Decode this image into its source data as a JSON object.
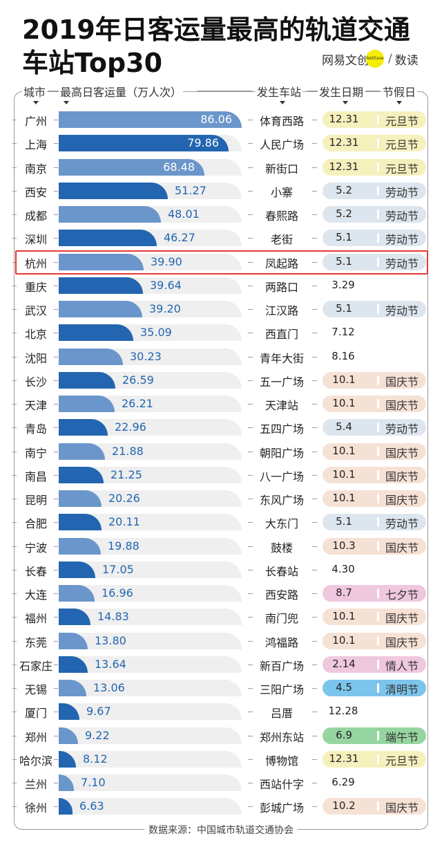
{
  "title": {
    "line1": "2019年日客运量最高的轨道交通",
    "line2": "车站Top30"
  },
  "logo": {
    "left": "网易文创",
    "mark": "NetEase",
    "sep": "/",
    "right": "数读"
  },
  "headers": {
    "city": "城市",
    "value": "最高日客运量（万人次）",
    "station": "发生车站",
    "date": "发生日期",
    "holiday": "节假日"
  },
  "source": "数据来源：中国城市轨道交通协会",
  "colors": {
    "bar_light": "#6b96cb",
    "bar_dark": "#2365b0",
    "track": "#efefef",
    "元旦节": "#f6f0bd",
    "劳动节": "#dde6ee",
    "国庆节": "#f6e1d5",
    "七夕节": "#efc8de",
    "情人节": "#efc8de",
    "清明节": "#7cc4ec",
    "端午节": "#96d5a0",
    "highlight": "#e53935"
  },
  "chart_data": {
    "type": "bar",
    "orientation": "horizontal",
    "title": "2019年日客运量最高的轨道交通车站Top30",
    "xlabel": "最高日客运量（万人次）",
    "xlim": [
      0,
      86.06
    ],
    "highlight": "杭州",
    "rows": [
      {
        "city": "广州",
        "value": "86.06",
        "station": "体育西路",
        "date": "12.31",
        "holiday": "元旦节"
      },
      {
        "city": "上海",
        "value": "79.86",
        "station": "人民广场",
        "date": "12.31",
        "holiday": "元旦节"
      },
      {
        "city": "南京",
        "value": "68.48",
        "station": "新街口",
        "date": "12.31",
        "holiday": "元旦节"
      },
      {
        "city": "西安",
        "value": "51.27",
        "station": "小寨",
        "date": "5.2",
        "holiday": "劳动节"
      },
      {
        "city": "成都",
        "value": "48.01",
        "station": "春熙路",
        "date": "5.2",
        "holiday": "劳动节"
      },
      {
        "city": "深圳",
        "value": "46.27",
        "station": "老街",
        "date": "5.1",
        "holiday": "劳动节"
      },
      {
        "city": "杭州",
        "value": "39.90",
        "station": "凤起路",
        "date": "5.1",
        "holiday": "劳动节"
      },
      {
        "city": "重庆",
        "value": "39.64",
        "station": "两路口",
        "date": "3.29",
        "holiday": ""
      },
      {
        "city": "武汉",
        "value": "39.20",
        "station": "江汉路",
        "date": "5.1",
        "holiday": "劳动节"
      },
      {
        "city": "北京",
        "value": "35.09",
        "station": "西直门",
        "date": "7.12",
        "holiday": ""
      },
      {
        "city": "沈阳",
        "value": "30.23",
        "station": "青年大街",
        "date": "8.16",
        "holiday": ""
      },
      {
        "city": "长沙",
        "value": "26.59",
        "station": "五一广场",
        "date": "10.1",
        "holiday": "国庆节"
      },
      {
        "city": "天津",
        "value": "26.21",
        "station": "天津站",
        "date": "10.1",
        "holiday": "国庆节"
      },
      {
        "city": "青岛",
        "value": "22.96",
        "station": "五四广场",
        "date": "5.4",
        "holiday": "劳动节"
      },
      {
        "city": "南宁",
        "value": "21.88",
        "station": "朝阳广场",
        "date": "10.1",
        "holiday": "国庆节"
      },
      {
        "city": "南昌",
        "value": "21.25",
        "station": "八一广场",
        "date": "10.1",
        "holiday": "国庆节"
      },
      {
        "city": "昆明",
        "value": "20.26",
        "station": "东风广场",
        "date": "10.1",
        "holiday": "国庆节"
      },
      {
        "city": "合肥",
        "value": "20.11",
        "station": "大东门",
        "date": "5.1",
        "holiday": "劳动节"
      },
      {
        "city": "宁波",
        "value": "19.88",
        "station": "鼓楼",
        "date": "10.3",
        "holiday": "国庆节"
      },
      {
        "city": "长春",
        "value": "17.05",
        "station": "长春站",
        "date": "4.30",
        "holiday": ""
      },
      {
        "city": "大连",
        "value": "16.96",
        "station": "西安路",
        "date": "8.7",
        "holiday": "七夕节"
      },
      {
        "city": "福州",
        "value": "14.83",
        "station": "南门兜",
        "date": "10.1",
        "holiday": "国庆节"
      },
      {
        "city": "东莞",
        "value": "13.80",
        "station": "鸿福路",
        "date": "10.1",
        "holiday": "国庆节"
      },
      {
        "city": "石家庄",
        "value": "13.64",
        "station": "新百广场",
        "date": "2.14",
        "holiday": "情人节"
      },
      {
        "city": "无锡",
        "value": "13.06",
        "station": "三阳广场",
        "date": "4.5",
        "holiday": "清明节"
      },
      {
        "city": "厦门",
        "value": "9.67",
        "station": "吕厝",
        "date": "12.28",
        "holiday": ""
      },
      {
        "city": "郑州",
        "value": "9.22",
        "station": "郑州东站",
        "date": "6.9",
        "holiday": "端午节"
      },
      {
        "city": "哈尔滨",
        "value": "8.12",
        "station": "博物馆",
        "date": "12.31",
        "holiday": "元旦节"
      },
      {
        "city": "兰州",
        "value": "7.10",
        "station": "西站什字",
        "date": "6.29",
        "holiday": ""
      },
      {
        "city": "徐州",
        "value": "6.63",
        "station": "彭城广场",
        "date": "10.2",
        "holiday": "国庆节"
      }
    ]
  }
}
